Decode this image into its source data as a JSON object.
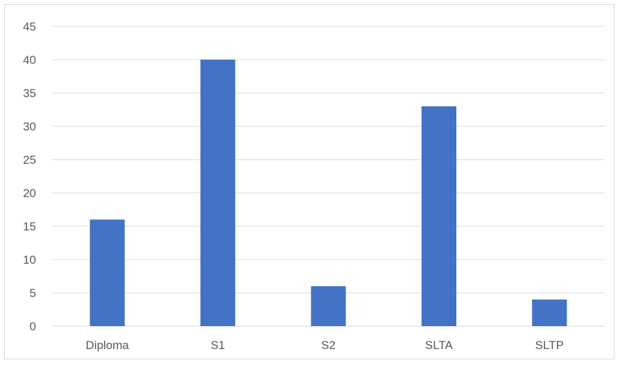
{
  "chart_data": {
    "type": "bar",
    "title": "",
    "xlabel": "",
    "ylabel": "",
    "categories": [
      "Diploma",
      "S1",
      "S2",
      "SLTA",
      "SLTP"
    ],
    "values": [
      16,
      40,
      6,
      33,
      4
    ],
    "ylim": [
      0,
      45
    ],
    "yticks": [
      0,
      5,
      10,
      15,
      20,
      25,
      30,
      35,
      40,
      45
    ],
    "ytick_labels": [
      "0",
      "5",
      "10",
      "15",
      "20",
      "25",
      "30",
      "35",
      "40",
      "45"
    ],
    "grid": true,
    "legend": "none",
    "bar_color": "#4472c4",
    "grid_color": "#d9d9d9",
    "label_color": "#595959"
  }
}
